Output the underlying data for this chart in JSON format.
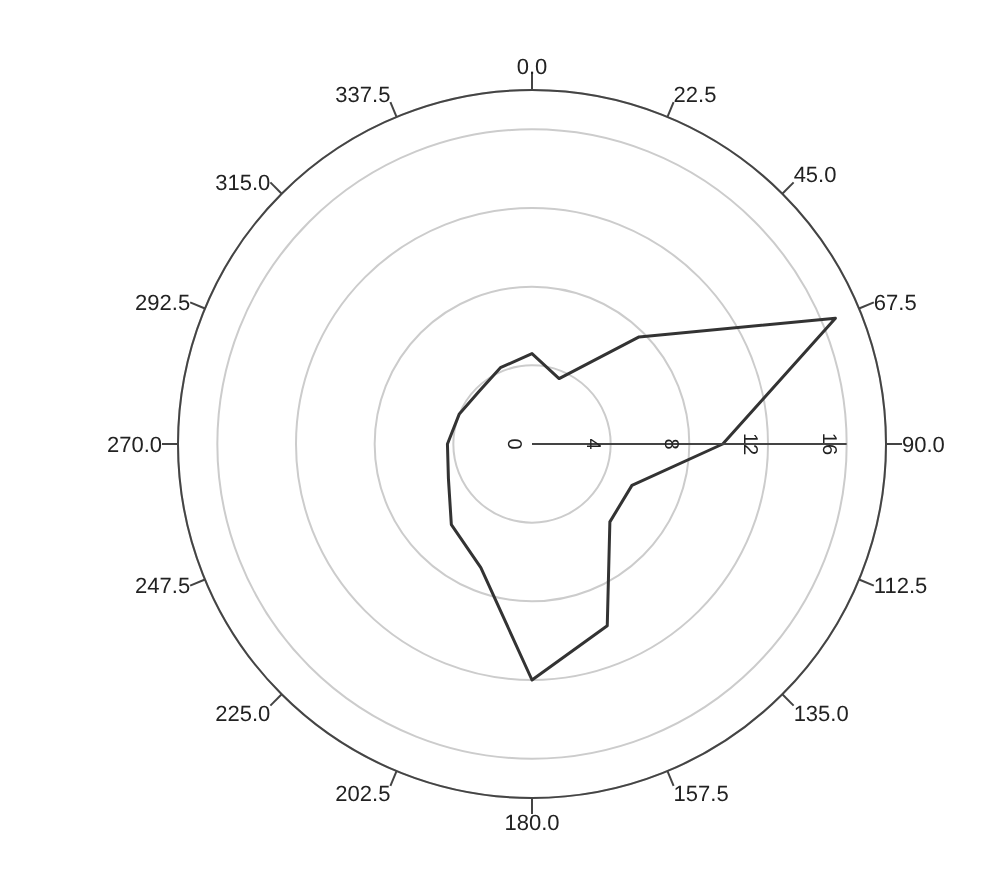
{
  "chart_data": {
    "type": "radar",
    "categories": [
      "0.0",
      "22.5",
      "45.0",
      "67.5",
      "90.0",
      "112.5",
      "135.0",
      "157.5",
      "180.0",
      "202.5",
      "225.0",
      "247.5",
      "270.0",
      "292.5",
      "315.0",
      "337.5"
    ],
    "series": [
      {
        "color": "#333333",
        "values": [
          4.6,
          3.6,
          7.7,
          16.7,
          9.7,
          5.5,
          5.6,
          10,
          12,
          6.8,
          5.8,
          4.6,
          4.3,
          4.0,
          3.8,
          4.2
        ]
      }
    ],
    "ylim": [
      0,
      18
    ],
    "yticks": [
      0,
      4,
      8,
      12,
      16
    ],
    "grid": true,
    "marker": "none",
    "line_style": "solid"
  }
}
